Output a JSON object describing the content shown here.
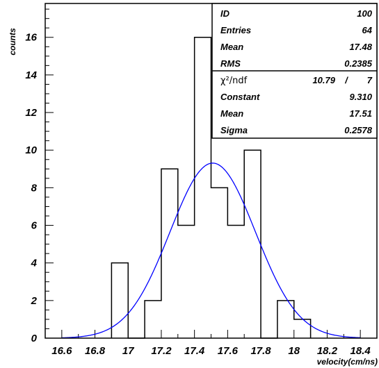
{
  "chart_data": {
    "type": "bar",
    "subtype": "histogram-with-gaussian-fit",
    "xlabel": "velocity(cm/ns)",
    "ylabel": "counts",
    "xlim": [
      16.5,
      18.5
    ],
    "ylim": [
      0,
      17.8
    ],
    "x_ticks": [
      {
        "value": 16.6,
        "label": "16.6"
      },
      {
        "value": 16.8,
        "label": "16.8"
      },
      {
        "value": 17.0,
        "label": "17"
      },
      {
        "value": 17.2,
        "label": "17.2"
      },
      {
        "value": 17.4,
        "label": "17.4"
      },
      {
        "value": 17.6,
        "label": "17.6"
      },
      {
        "value": 17.8,
        "label": "17.8"
      },
      {
        "value": 18.0,
        "label": "18"
      },
      {
        "value": 18.2,
        "label": "18.2"
      },
      {
        "value": 18.4,
        "label": "18.4"
      }
    ],
    "y_ticks": [
      {
        "value": 0,
        "label": "0"
      },
      {
        "value": 2,
        "label": "2"
      },
      {
        "value": 4,
        "label": "4"
      },
      {
        "value": 6,
        "label": "6"
      },
      {
        "value": 8,
        "label": "8"
      },
      {
        "value": 10,
        "label": "10"
      },
      {
        "value": 12,
        "label": "12"
      },
      {
        "value": 14,
        "label": "14"
      },
      {
        "value": 16,
        "label": "16"
      }
    ],
    "bins": [
      {
        "low": 16.9,
        "high": 17.0,
        "count": 4
      },
      {
        "low": 17.0,
        "high": 17.1,
        "count": 0
      },
      {
        "low": 17.1,
        "high": 17.2,
        "count": 2
      },
      {
        "low": 17.2,
        "high": 17.3,
        "count": 9
      },
      {
        "low": 17.3,
        "high": 17.4,
        "count": 6
      },
      {
        "low": 17.4,
        "high": 17.5,
        "count": 16
      },
      {
        "low": 17.5,
        "high": 17.6,
        "count": 8
      },
      {
        "low": 17.6,
        "high": 17.7,
        "count": 6
      },
      {
        "low": 17.7,
        "high": 17.8,
        "count": 10
      },
      {
        "low": 17.8,
        "high": 17.9,
        "count": 0
      },
      {
        "low": 17.9,
        "high": 18.0,
        "count": 2
      },
      {
        "low": 18.0,
        "high": 18.1,
        "count": 1
      }
    ],
    "fit": {
      "function": "gaussian",
      "constant": 9.31,
      "mean": 17.51,
      "sigma": 0.2578,
      "x_range": [
        16.6,
        18.4
      ],
      "color": "#0000ff"
    },
    "histogram_color": "#000000"
  },
  "stats_box": {
    "rows_top": [
      {
        "label": "ID",
        "value": "100"
      },
      {
        "label": "Entries",
        "value": "64"
      },
      {
        "label": "Mean",
        "value": "17.48"
      },
      {
        "label": "RMS",
        "value": "0.2385"
      }
    ],
    "chi2_label": "χ²/ndf",
    "chi2_value": "10.79",
    "chi2_sep": "/",
    "ndf_value": "7",
    "rows_bottom": [
      {
        "label": "Constant",
        "value": "9.310"
      },
      {
        "label": "Mean",
        "value": "17.51"
      },
      {
        "label": "Sigma",
        "value": "0.2578"
      }
    ]
  }
}
